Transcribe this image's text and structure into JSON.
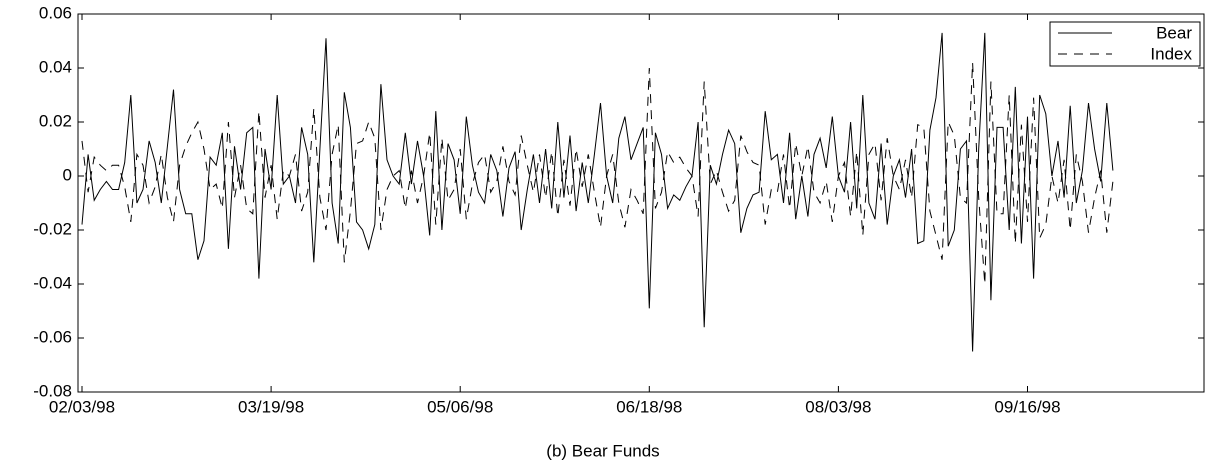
{
  "chart_data": {
    "type": "line",
    "title": "(b) Bear Funds",
    "categories": [
      "02/03/98",
      null,
      null,
      null,
      null,
      null,
      null,
      null,
      null,
      null,
      null,
      null,
      null,
      null,
      null,
      null,
      null,
      null,
      null,
      null,
      null,
      null,
      null,
      null,
      null,
      null,
      null,
      null,
      null,
      null,
      null,
      "03/19/98",
      null,
      null,
      null,
      null,
      null,
      null,
      null,
      null,
      null,
      null,
      null,
      null,
      null,
      null,
      null,
      null,
      null,
      null,
      null,
      null,
      null,
      null,
      null,
      null,
      null,
      null,
      null,
      null,
      null,
      null,
      "05/06/98",
      null,
      null,
      null,
      null,
      null,
      null,
      null,
      null,
      null,
      null,
      null,
      null,
      null,
      null,
      null,
      null,
      null,
      null,
      null,
      null,
      null,
      null,
      null,
      null,
      null,
      null,
      null,
      null,
      null,
      null,
      "06/18/98",
      null,
      null,
      null,
      null,
      null,
      null,
      null,
      null,
      null,
      null,
      null,
      null,
      null,
      null,
      null,
      null,
      null,
      null,
      null,
      null,
      null,
      null,
      null,
      null,
      null,
      null,
      null,
      null,
      null,
      null,
      "08/03/98",
      null,
      null,
      null,
      null,
      null,
      null,
      null,
      null,
      null,
      null,
      null,
      null,
      null,
      null,
      null,
      null,
      null,
      null,
      null,
      null,
      null,
      null,
      null,
      null,
      null,
      null,
      null,
      null,
      null,
      null,
      "09/16/98",
      null,
      null,
      null,
      null,
      null,
      null,
      null,
      null,
      null,
      null,
      null,
      null,
      null,
      null
    ],
    "series": [
      {
        "name": "Bear",
        "color": "#000000",
        "dash": false,
        "values": [
          -0.018,
          0.008,
          -0.009,
          -0.005,
          -0.002,
          -0.005,
          -0.005,
          0.005,
          0.03,
          -0.01,
          -0.005,
          0.013,
          0.005,
          -0.01,
          0.011,
          0.032,
          -0.005,
          -0.014,
          -0.014,
          -0.031,
          -0.024,
          0.007,
          0.004,
          0.016,
          -0.027,
          0.011,
          -0.005,
          0.016,
          0.018,
          -0.038,
          0.01,
          -0.005,
          0.03,
          -0.003,
          0.0,
          -0.01,
          0.018,
          0.008,
          -0.032,
          0.01,
          0.051,
          -0.01,
          -0.025,
          0.031,
          0.018,
          -0.017,
          -0.02,
          -0.027,
          -0.018,
          0.034,
          0.006,
          0.0,
          -0.003,
          0.016,
          -0.003,
          0.013,
          0.0,
          -0.022,
          0.024,
          -0.02,
          0.012,
          0.006,
          -0.014,
          0.022,
          0.004,
          -0.006,
          -0.01,
          0.008,
          0.002,
          -0.015,
          0.003,
          0.009,
          -0.02,
          -0.005,
          0.008,
          -0.01,
          0.01,
          -0.012,
          0.02,
          -0.008,
          0.015,
          -0.013,
          0.005,
          -0.01,
          0.008,
          0.027,
          0.0,
          -0.01,
          0.014,
          0.022,
          0.006,
          0.012,
          0.018,
          -0.049,
          0.016,
          0.008,
          -0.012,
          -0.007,
          -0.009,
          -0.004,
          0.0,
          0.02,
          -0.056,
          0.004,
          -0.003,
          0.008,
          0.017,
          0.012,
          -0.021,
          -0.012,
          -0.007,
          -0.006,
          0.024,
          0.006,
          0.008,
          -0.01,
          0.016,
          -0.016,
          0.0,
          -0.015,
          0.008,
          0.014,
          0.003,
          0.022,
          0.0,
          -0.006,
          0.02,
          -0.012,
          0.03,
          -0.01,
          -0.016,
          0.012,
          -0.018,
          0.0,
          0.006,
          -0.008,
          0.01,
          -0.025,
          -0.024,
          0.017,
          0.029,
          0.053,
          -0.026,
          -0.02,
          0.01,
          0.013,
          -0.065,
          0.01,
          0.053,
          -0.046,
          0.018,
          0.018,
          -0.02,
          0.033,
          -0.025,
          0.022,
          -0.038,
          0.03,
          0.023,
          0.0,
          0.013,
          -0.008,
          0.026,
          -0.01,
          0.002,
          0.027,
          0.01,
          -0.002,
          0.027,
          0.002
        ]
      },
      {
        "name": "Index",
        "color": "#000000",
        "dash": true,
        "values": [
          0.013,
          -0.006,
          0.007,
          0.004,
          0.002,
          0.004,
          0.004,
          -0.004,
          -0.017,
          0.008,
          0.004,
          -0.01,
          -0.004,
          0.008,
          -0.008,
          -0.017,
          0.004,
          0.011,
          0.016,
          0.02,
          0.01,
          -0.005,
          -0.003,
          -0.012,
          0.02,
          -0.008,
          0.004,
          -0.012,
          -0.014,
          0.024,
          -0.008,
          0.004,
          -0.016,
          0.002,
          0.0,
          0.008,
          -0.013,
          -0.006,
          0.025,
          -0.008,
          -0.02,
          0.008,
          0.019,
          -0.032,
          -0.013,
          0.012,
          0.013,
          0.02,
          0.014,
          -0.02,
          -0.005,
          0.0,
          0.002,
          -0.012,
          0.002,
          -0.01,
          0.0,
          0.016,
          -0.018,
          0.014,
          -0.009,
          -0.005,
          0.01,
          -0.016,
          -0.003,
          0.005,
          0.008,
          -0.006,
          -0.002,
          0.011,
          -0.002,
          -0.007,
          0.015,
          0.004,
          -0.006,
          0.008,
          -0.008,
          0.009,
          -0.015,
          0.006,
          -0.011,
          0.01,
          -0.004,
          0.008,
          -0.006,
          -0.019,
          0.0,
          0.008,
          -0.01,
          -0.019,
          -0.005,
          -0.009,
          -0.014,
          0.04,
          -0.012,
          -0.006,
          0.009,
          0.005,
          0.007,
          0.003,
          0.0,
          -0.015,
          0.035,
          -0.003,
          0.002,
          -0.006,
          -0.013,
          -0.009,
          0.015,
          0.009,
          0.005,
          0.004,
          -0.018,
          -0.005,
          -0.006,
          0.008,
          -0.012,
          0.012,
          0.0,
          0.011,
          -0.006,
          -0.01,
          -0.002,
          -0.017,
          0.0,
          0.005,
          -0.015,
          0.009,
          -0.022,
          0.008,
          0.012,
          -0.009,
          0.014,
          0.0,
          -0.005,
          0.006,
          -0.008,
          0.019,
          0.018,
          -0.013,
          -0.022,
          -0.031,
          0.02,
          0.015,
          -0.008,
          -0.01,
          0.042,
          -0.008,
          -0.04,
          0.035,
          -0.014,
          -0.014,
          0.03,
          -0.025,
          0.019,
          -0.017,
          0.029,
          -0.023,
          -0.018,
          0.0,
          -0.01,
          0.006,
          -0.02,
          0.008,
          -0.002,
          -0.021,
          -0.008,
          0.002,
          -0.021,
          -0.002
        ]
      }
    ],
    "ylim": [
      -0.08,
      0.06
    ],
    "yticks": [
      -0.08,
      -0.06,
      -0.04,
      -0.02,
      0,
      0.02,
      0.04,
      0.06
    ],
    "grid": false,
    "legend": "upper right"
  }
}
